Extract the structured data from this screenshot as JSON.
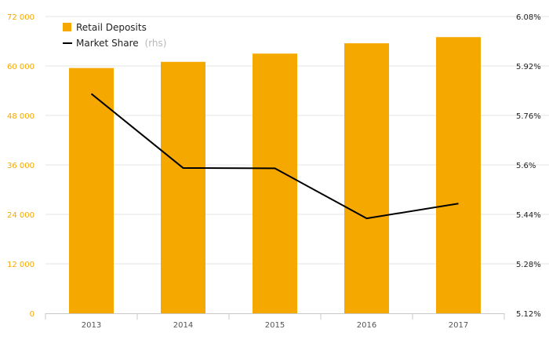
{
  "chart_data": {
    "type": "bar",
    "categories": [
      "2013",
      "2014",
      "2015",
      "2016",
      "2017"
    ],
    "series": [
      {
        "name": "Retail Deposits",
        "type": "bar",
        "axis": "left",
        "color": "#f5a800",
        "values": [
          59500,
          61000,
          63000,
          65500,
          67000
        ]
      },
      {
        "name": "Market Share",
        "name_suffix": "(rhs)",
        "type": "line",
        "axis": "right",
        "color": "#000000",
        "values": [
          5.83,
          5.59,
          5.589,
          5.427,
          5.475
        ]
      }
    ],
    "y_left": {
      "ylim": [
        0,
        72000
      ],
      "ticks": [
        0,
        12000,
        24000,
        36000,
        48000,
        60000,
        72000
      ],
      "tick_labels": [
        "0",
        "12 000",
        "24 000",
        "36 000",
        "48 000",
        "60 000",
        "72 000"
      ]
    },
    "y_right": {
      "ylim": [
        5.12,
        6.08
      ],
      "ticks": [
        5.12,
        5.28,
        5.44,
        5.6,
        5.76,
        5.92,
        6.08
      ],
      "tick_labels": [
        "5.12%",
        "5.28%",
        "5.44%",
        "5.6%",
        "5.76%",
        "5.92%",
        "6.08%"
      ]
    },
    "legend_position": "top-left",
    "grid": true
  }
}
